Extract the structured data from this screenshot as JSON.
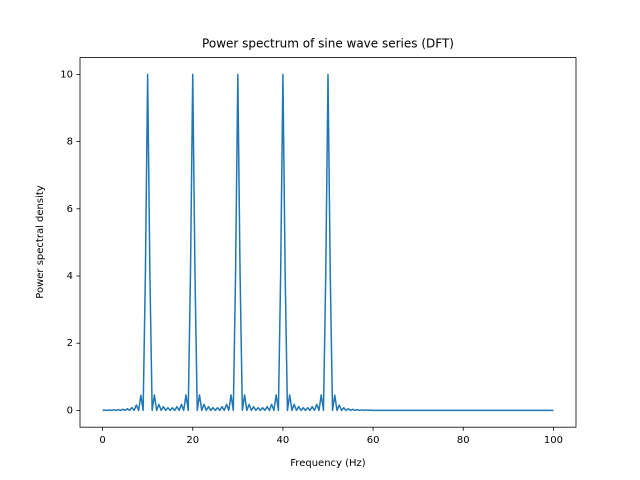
{
  "chart_data": {
    "type": "line",
    "title": "Power spectrum of sine wave series (DFT)",
    "x_label": "Frequency (Hz)",
    "y_label": "Power spectral density",
    "xlim": [
      -5,
      105
    ],
    "ylim": [
      -0.5,
      10.5
    ],
    "xticks": [
      0,
      20,
      40,
      60,
      80,
      100
    ],
    "yticks": [
      0,
      2,
      4,
      6,
      8,
      10
    ],
    "grid": false,
    "series": [
      {
        "name": "Power spectrum",
        "color": "#1f77b4",
        "x": [
          0,
          0.5,
          1,
          1.5,
          2,
          2.5,
          3,
          3.5,
          4,
          4.5,
          5,
          5.5,
          6,
          6.5,
          7,
          7.5,
          8,
          8.5,
          9,
          9.5,
          10,
          10.5,
          11,
          11.5,
          12,
          12.5,
          13,
          13.5,
          14,
          14.5,
          15,
          15.5,
          16,
          16.5,
          17,
          17.5,
          18,
          18.5,
          19,
          19.5,
          20,
          20.5,
          21,
          21.5,
          22,
          22.5,
          23,
          23.5,
          24,
          24.5,
          25,
          25.5,
          26,
          26.5,
          27,
          27.5,
          28,
          28.5,
          29,
          29.5,
          30,
          30.5,
          31,
          31.5,
          32,
          32.5,
          33,
          33.5,
          34,
          34.5,
          35,
          35.5,
          36,
          36.5,
          37,
          37.5,
          38,
          38.5,
          39,
          39.5,
          40,
          40.5,
          41,
          41.5,
          42,
          42.5,
          43,
          43.5,
          44,
          44.5,
          45,
          45.5,
          46,
          46.5,
          47,
          47.5,
          48,
          48.5,
          49,
          49.5,
          50,
          50.5,
          51,
          51.5,
          52,
          52.5,
          53,
          53.5,
          54,
          54.5,
          55,
          55.5,
          56,
          56.5,
          57,
          57.5,
          58,
          58.5,
          59,
          59.5,
          60,
          70,
          80,
          90,
          100
        ],
        "values": [
          0,
          0.01,
          0,
          0.014,
          0,
          0.018,
          0,
          0.024,
          0,
          0.033,
          0,
          0.05,
          0,
          0.083,
          0,
          0.16,
          0,
          0.45,
          0,
          4.05,
          10,
          4.06,
          0,
          0.46,
          0,
          0.18,
          0,
          0.11,
          0,
          0.08,
          0,
          0.08,
          0,
          0.11,
          0,
          0.18,
          0,
          0.46,
          0,
          4.06,
          10,
          4.06,
          0,
          0.46,
          0,
          0.18,
          0,
          0.11,
          0,
          0.08,
          0,
          0.08,
          0,
          0.11,
          0,
          0.18,
          0,
          0.46,
          0,
          4.06,
          10,
          4.06,
          0,
          0.46,
          0,
          0.18,
          0,
          0.11,
          0,
          0.08,
          0,
          0.08,
          0,
          0.11,
          0,
          0.18,
          0,
          0.46,
          0,
          4.06,
          10,
          4.06,
          0,
          0.46,
          0,
          0.18,
          0,
          0.11,
          0,
          0.08,
          0,
          0.08,
          0,
          0.11,
          0,
          0.18,
          0,
          0.46,
          0,
          4.06,
          10,
          4.05,
          0,
          0.45,
          0,
          0.16,
          0,
          0.08,
          0,
          0.05,
          0,
          0.033,
          0,
          0.024,
          0,
          0.018,
          0,
          0.014,
          0,
          0.01,
          0,
          0,
          0,
          0,
          0
        ]
      }
    ]
  }
}
